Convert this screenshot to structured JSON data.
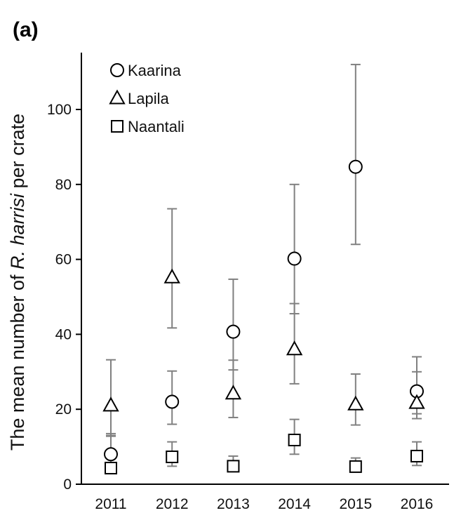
{
  "panel_label": "(a)",
  "chart_data": {
    "type": "scatter",
    "title": "",
    "ylabel_parts": [
      "The mean number of ",
      "R. harrisi",
      " per crate"
    ],
    "xlabel": "",
    "categories": [
      "2011",
      "2012",
      "2013",
      "2014",
      "2015",
      "2016"
    ],
    "ylim": [
      0,
      115
    ],
    "yticks": [
      0,
      20,
      40,
      60,
      80,
      100
    ],
    "grid": false,
    "legend_position": "top-left",
    "error_bar_color": "#808080",
    "series": [
      {
        "name": "Kaarina",
        "marker": "circle",
        "values": [
          8,
          22,
          40.7,
          60.2,
          84.7,
          24.8
        ],
        "err_low": [
          3,
          16,
          30.5,
          45.5,
          64,
          17.5
        ],
        "err_high": [
          13,
          30.2,
          54.7,
          80,
          112,
          30
        ]
      },
      {
        "name": "Lapila",
        "marker": "triangle",
        "values": [
          21,
          55.2,
          24.2,
          36,
          21.3,
          21.7
        ],
        "err_low": [
          12.8,
          41.7,
          17.8,
          26.8,
          15.8,
          18.8
        ],
        "err_high": [
          33.2,
          73.5,
          33.1,
          48.2,
          29.4,
          34
        ]
      },
      {
        "name": "Naantali",
        "marker": "square",
        "values": [
          4.3,
          7.3,
          4.8,
          11.8,
          4.7,
          7.5
        ],
        "err_low": [
          3,
          4.8,
          3.5,
          8,
          3.5,
          5
        ],
        "err_high": [
          13.5,
          11.3,
          7.5,
          17.3,
          7,
          11.3
        ]
      }
    ]
  }
}
